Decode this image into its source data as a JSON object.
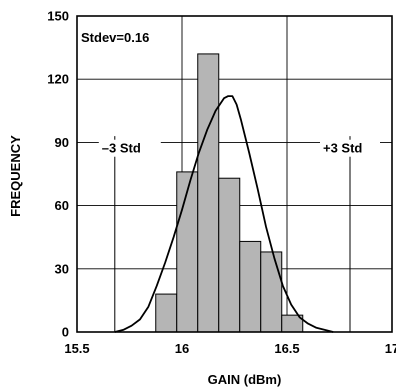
{
  "chart_data": {
    "type": "bar",
    "xlabel": "GAIN (dBm)",
    "ylabel": "FREQUENCY",
    "xlim": [
      15.5,
      17
    ],
    "ylim": [
      0,
      150
    ],
    "x_ticks": [
      15.5,
      16,
      16.5,
      17
    ],
    "x_tick_labels": [
      "15.5",
      "16",
      "16.5",
      "17"
    ],
    "y_ticks": [
      0,
      30,
      60,
      90,
      120,
      150
    ],
    "y_tick_labels": [
      "0",
      "30",
      "60",
      "90",
      "120",
      "150"
    ],
    "grid": true,
    "bins": [
      {
        "x0": 15.875,
        "x1": 15.975,
        "value": 18
      },
      {
        "x0": 15.975,
        "x1": 16.075,
        "value": 76
      },
      {
        "x0": 16.075,
        "x1": 16.175,
        "value": 132
      },
      {
        "x0": 16.175,
        "x1": 16.275,
        "value": 73
      },
      {
        "x0": 16.275,
        "x1": 16.375,
        "value": 43
      },
      {
        "x0": 16.375,
        "x1": 16.475,
        "value": 38
      },
      {
        "x0": 16.475,
        "x1": 16.575,
        "value": 8
      }
    ],
    "curve": {
      "x": [
        15.68,
        15.72,
        15.76,
        15.8,
        15.84,
        15.88,
        15.92,
        15.96,
        16.0,
        16.04,
        16.08,
        16.12,
        16.16,
        16.2,
        16.22,
        16.24,
        16.26,
        16.28,
        16.32,
        16.36,
        16.4,
        16.44,
        16.48,
        16.52,
        16.56,
        16.6,
        16.64,
        16.68,
        16.72
      ],
      "y": [
        0,
        1,
        3,
        6,
        12,
        22,
        33,
        45,
        58,
        72,
        85,
        96,
        105,
        111,
        112,
        112,
        108,
        101,
        85,
        68,
        50,
        35,
        22,
        13,
        7,
        4,
        2,
        1,
        0
      ]
    },
    "annotations": [
      {
        "text": "Stdev=0.16"
      },
      {
        "text": "–3 Std",
        "x": 15.68
      },
      {
        "text": "+3 Std",
        "x": 16.8
      }
    ]
  }
}
